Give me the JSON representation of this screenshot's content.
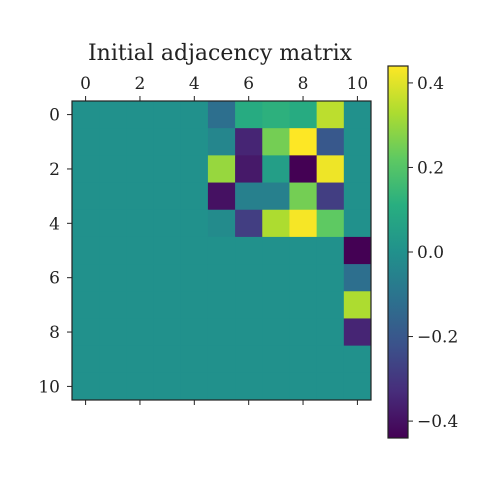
{
  "chart_data": {
    "type": "heatmap",
    "title": "Initial adjacency matrix",
    "xlabel": "",
    "ylabel": "",
    "x_ticks": [
      "0",
      "2",
      "4",
      "6",
      "8",
      "10"
    ],
    "y_ticks": [
      "0",
      "2",
      "4",
      "6",
      "8",
      "10"
    ],
    "colorbar_ticks": [
      "0.4",
      "0.2",
      "0.0",
      "−0.2",
      "−0.4"
    ],
    "colorbar_tick_values": [
      0.4,
      0.2,
      0.0,
      -0.2,
      -0.4
    ],
    "value_range": [
      -0.44,
      0.44
    ],
    "colormap": "viridis",
    "grid": false,
    "rows": 11,
    "cols": 11,
    "matrix": [
      [
        0,
        0,
        0,
        0,
        0,
        -0.12,
        0.1,
        0.12,
        0.1,
        0.35,
        0
      ],
      [
        0,
        0,
        0,
        0,
        0,
        -0.04,
        -0.35,
        0.25,
        0.44,
        -0.2,
        0
      ],
      [
        0,
        0,
        0,
        0,
        0,
        0.3,
        -0.38,
        0.05,
        -0.44,
        0.42,
        0
      ],
      [
        0,
        0,
        0,
        0,
        0,
        -0.4,
        -0.06,
        -0.06,
        0.25,
        -0.28,
        0
      ],
      [
        0,
        0,
        0,
        0,
        0,
        -0.02,
        -0.28,
        0.33,
        0.43,
        0.22,
        0
      ],
      [
        0,
        0,
        0,
        0,
        0,
        0,
        0,
        0,
        0,
        0,
        -0.44
      ],
      [
        0,
        0,
        0,
        0,
        0,
        0,
        0,
        0,
        0,
        0,
        -0.12
      ],
      [
        0,
        0,
        0,
        0,
        0,
        0,
        0,
        0,
        0,
        0,
        0.33
      ],
      [
        0,
        0,
        0,
        0,
        0,
        0,
        0,
        0,
        0,
        0,
        -0.35
      ],
      [
        0,
        0,
        0,
        0,
        0,
        0,
        0,
        0,
        0,
        0,
        0
      ],
      [
        0,
        0,
        0,
        0,
        0,
        0,
        0,
        0,
        0,
        0,
        0
      ]
    ]
  }
}
